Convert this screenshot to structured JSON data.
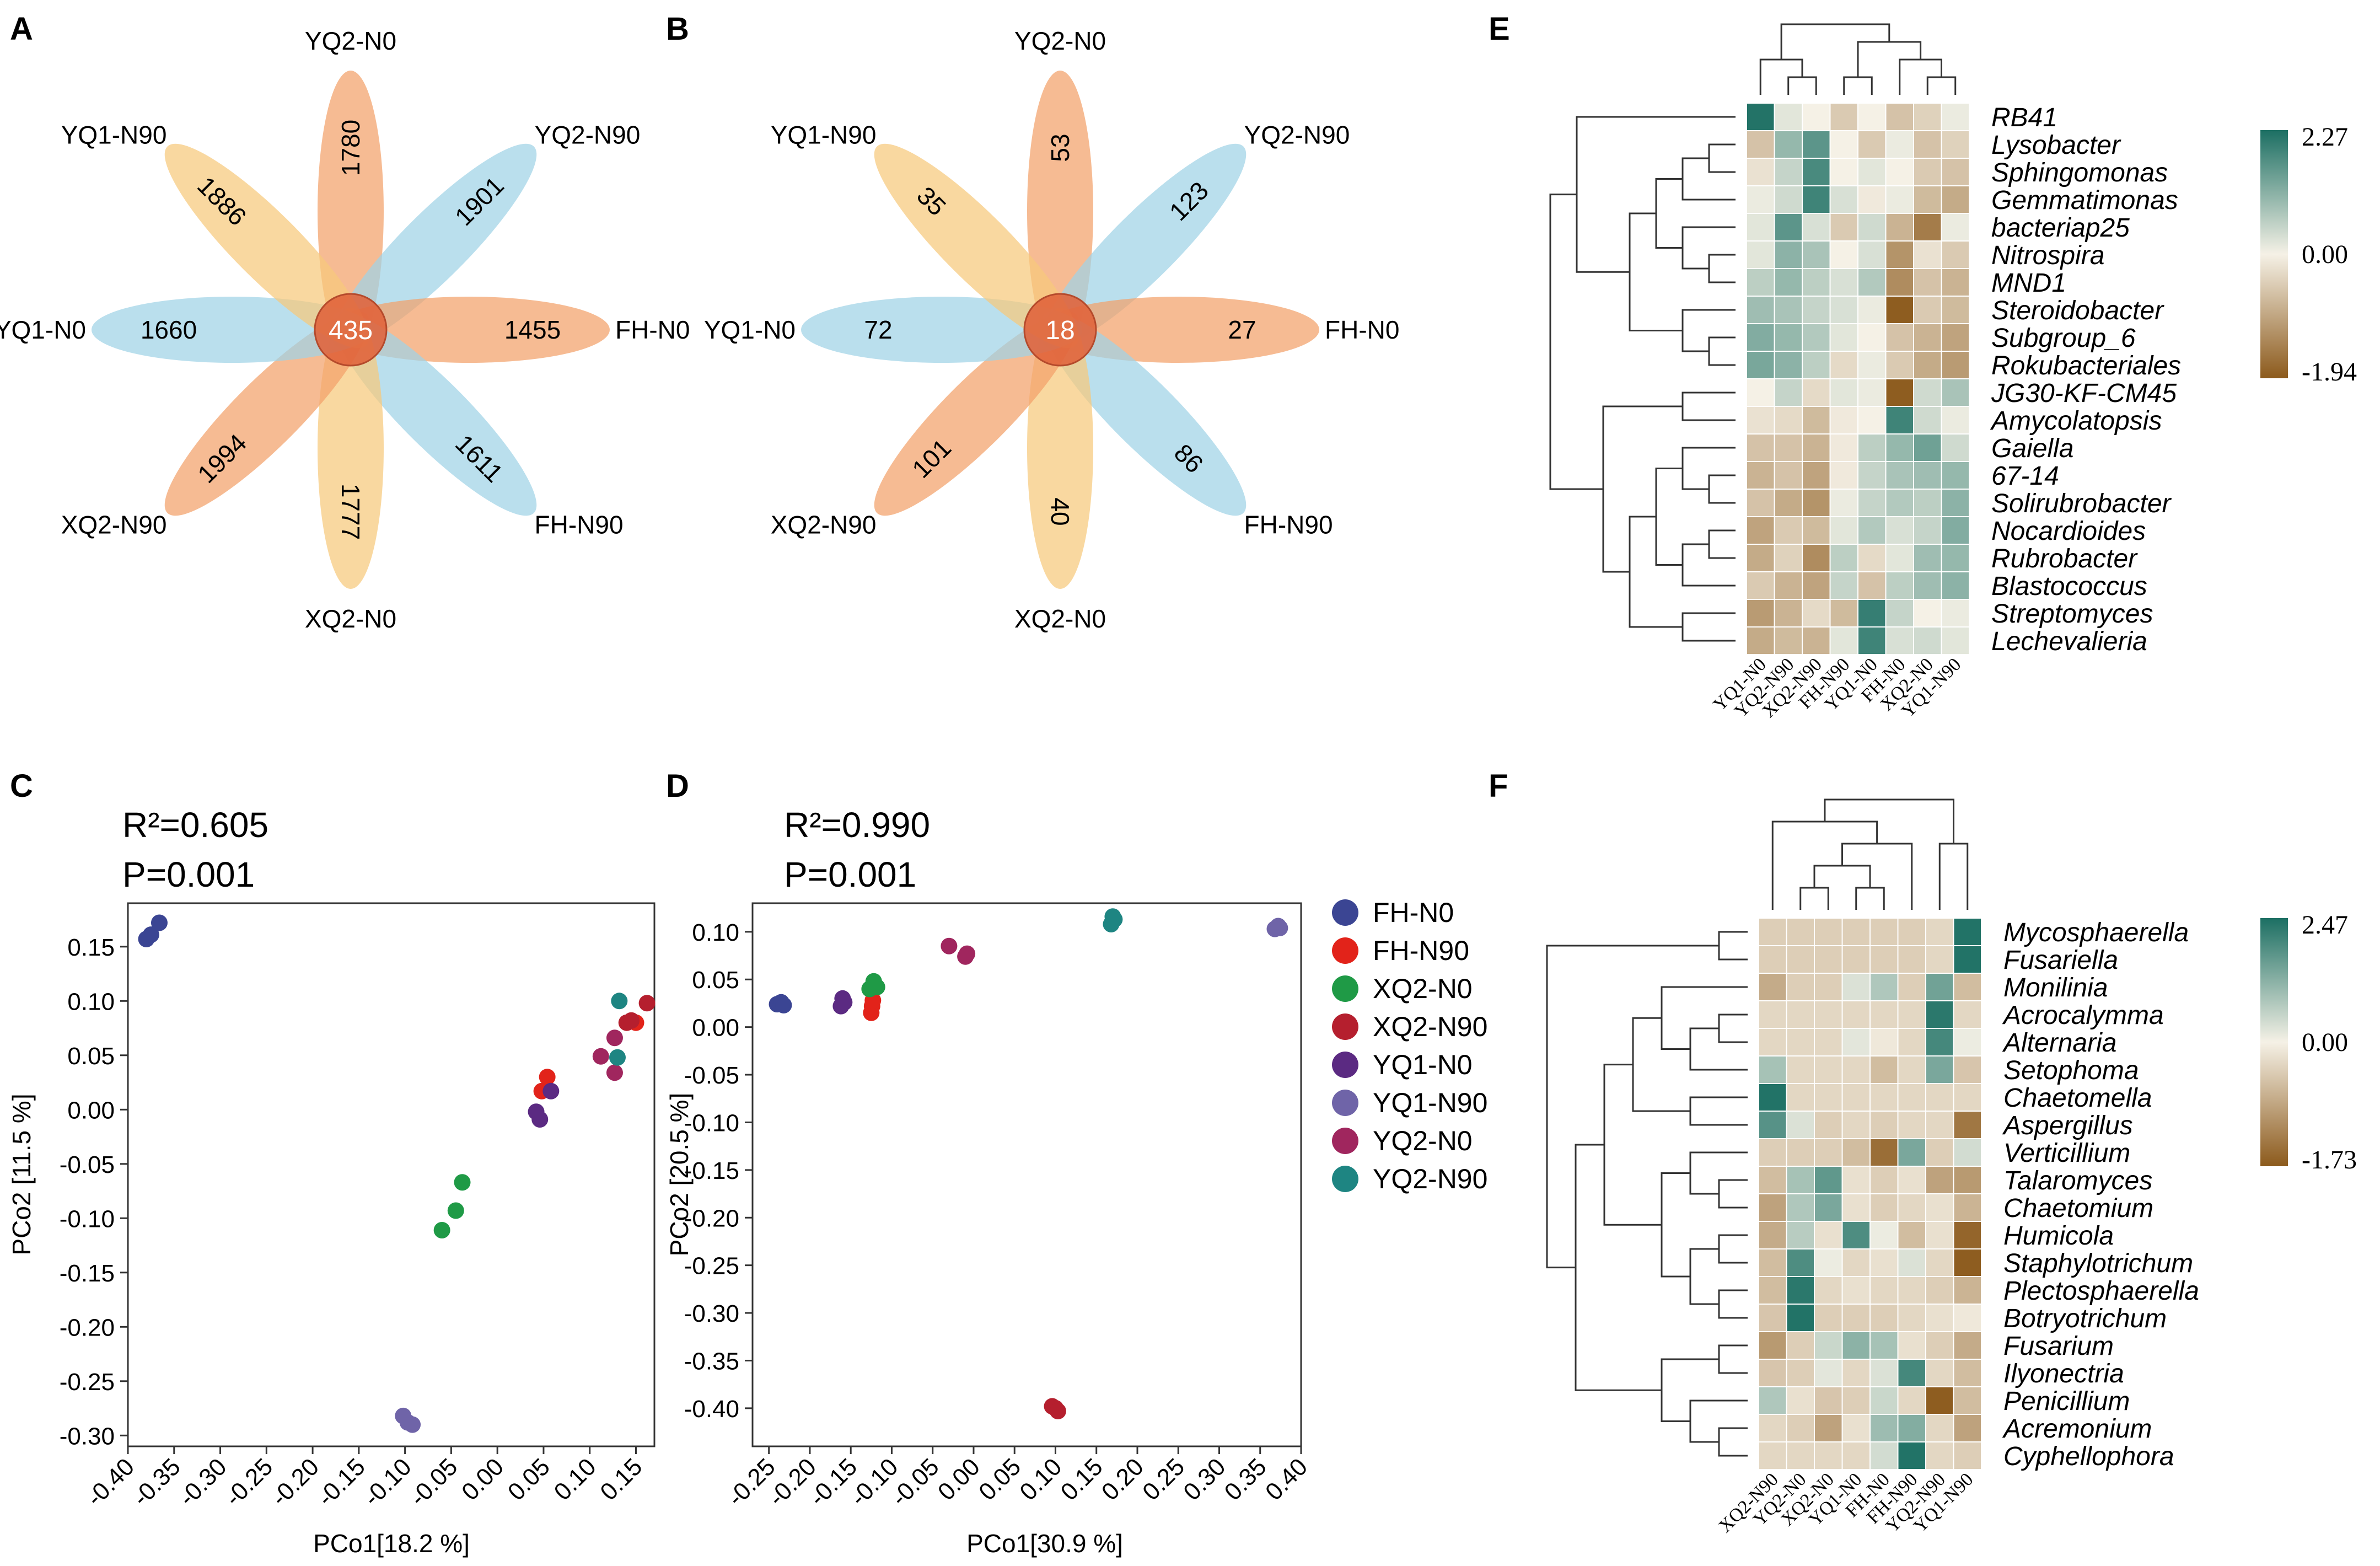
{
  "figure": {
    "panels": [
      "A",
      "B",
      "C",
      "D",
      "E",
      "F"
    ]
  },
  "colors": {
    "orange_petal": "#f2a16a",
    "yellow_petal": "#f7c97c",
    "blue_petal": "#9fd3e6",
    "center": "#e0623a",
    "heat_high": "#1c6f63",
    "heat_mid": "#f5f1e6",
    "heat_low": "#8c5a1c"
  },
  "chart_data": [
    {
      "panel": "A",
      "type": "venn-flower",
      "center_value": "435",
      "petals": [
        {
          "name": "YQ2-N0",
          "value": "1780",
          "color": "orange"
        },
        {
          "name": "YQ2-N90",
          "value": "1901",
          "color": "blue"
        },
        {
          "name": "FH-N0",
          "value": "1455",
          "color": "orange"
        },
        {
          "name": "FH-N90",
          "value": "1611",
          "color": "blue"
        },
        {
          "name": "XQ2-N0",
          "value": "1777",
          "color": "yellow"
        },
        {
          "name": "XQ2-N90",
          "value": "1994",
          "color": "orange"
        },
        {
          "name": "YQ1-N0",
          "value": "1660",
          "color": "blue"
        },
        {
          "name": "YQ1-N90",
          "value": "1886",
          "color": "yellow"
        }
      ]
    },
    {
      "panel": "B",
      "type": "venn-flower",
      "center_value": "18",
      "petals": [
        {
          "name": "YQ2-N0",
          "value": "53",
          "color": "orange"
        },
        {
          "name": "YQ2-N90",
          "value": "123",
          "color": "blue"
        },
        {
          "name": "FH-N0",
          "value": "27",
          "color": "orange"
        },
        {
          "name": "FH-N90",
          "value": "86",
          "color": "blue"
        },
        {
          "name": "XQ2-N0",
          "value": "40",
          "color": "yellow"
        },
        {
          "name": "XQ2-N90",
          "value": "101",
          "color": "orange"
        },
        {
          "name": "YQ1-N0",
          "value": "72",
          "color": "blue"
        },
        {
          "name": "YQ1-N90",
          "value": "35",
          "color": "yellow"
        }
      ]
    },
    {
      "panel": "C",
      "type": "scatter",
      "stat_r2": "R²=0.605",
      "stat_p": "P=0.001",
      "xlabel": "PCo1[18.2 %]",
      "ylabel": "PCo2 [11.5 %]",
      "xlim": [
        -0.4,
        0.17
      ],
      "ylim": [
        -0.31,
        0.19
      ],
      "xticks": [
        "-0.40",
        "-0.35",
        "-0.30",
        "-0.25",
        "-0.20",
        "-0.15",
        "-0.10",
        "-0.05",
        "0.00",
        "0.05",
        "0.10",
        "0.15"
      ],
      "yticks": [
        "0.15",
        "0.10",
        "0.05",
        "0.00",
        "-0.05",
        "-0.10",
        "-0.15",
        "-0.20",
        "-0.25",
        "-0.30"
      ],
      "series": [
        {
          "name": "FH-N0",
          "points": [
            [
              -0.38,
              0.157
            ],
            [
              -0.375,
              0.161
            ],
            [
              -0.366,
              0.172
            ]
          ]
        },
        {
          "name": "FH-N90",
          "points": [
            [
              0.048,
              0.017
            ],
            [
              0.054,
              0.03
            ],
            [
              0.15,
              0.08
            ]
          ]
        },
        {
          "name": "XQ2-N0",
          "points": [
            [
              -0.06,
              -0.111
            ],
            [
              -0.045,
              -0.093
            ],
            [
              -0.038,
              -0.067
            ]
          ]
        },
        {
          "name": "XQ2-N90",
          "points": [
            [
              0.14,
              0.08
            ],
            [
              0.145,
              0.082
            ],
            [
              0.162,
              0.098
            ]
          ]
        },
        {
          "name": "YQ1-N0",
          "points": [
            [
              0.042,
              -0.002
            ],
            [
              0.046,
              -0.009
            ],
            [
              0.058,
              0.017
            ]
          ]
        },
        {
          "name": "YQ1-N90",
          "points": [
            [
              -0.102,
              -0.282
            ],
            [
              -0.097,
              -0.288
            ],
            [
              -0.092,
              -0.29
            ]
          ]
        },
        {
          "name": "YQ2-N0",
          "points": [
            [
              0.112,
              0.049
            ],
            [
              0.127,
              0.066
            ],
            [
              0.127,
              0.034
            ]
          ]
        },
        {
          "name": "YQ2-N90",
          "points": [
            [
              0.132,
              0.1
            ],
            [
              0.13,
              0.048
            ]
          ]
        }
      ]
    },
    {
      "panel": "D",
      "type": "scatter",
      "stat_r2": "R²=0.990",
      "stat_p": "P=0.001",
      "xlabel": "PCo1[30.9 %]",
      "ylabel": "PCo2 [20.5 %]",
      "xlim": [
        -0.27,
        0.4
      ],
      "ylim": [
        -0.44,
        0.13
      ],
      "xticks": [
        "-0.25",
        "-0.20",
        "-0.15",
        "-0.10",
        "-0.05",
        "0.00",
        "0.05",
        "0.10",
        "0.15",
        "0.20",
        "0.25",
        "0.30",
        "0.35",
        "0.40"
      ],
      "yticks": [
        "0.10",
        "0.05",
        "0.00",
        "-0.05",
        "-0.10",
        "-0.15",
        "-0.20",
        "-0.25",
        "-0.30",
        "-0.35",
        "-0.40"
      ],
      "series": [
        {
          "name": "FH-N0",
          "points": [
            [
              -0.24,
              0.024
            ],
            [
              -0.235,
              0.026
            ],
            [
              -0.232,
              0.023
            ]
          ]
        },
        {
          "name": "FH-N90",
          "points": [
            [
              -0.125,
              0.015
            ],
            [
              -0.124,
              0.022
            ],
            [
              -0.123,
              0.028
            ]
          ]
        },
        {
          "name": "XQ2-N0",
          "points": [
            [
              -0.127,
              0.04
            ],
            [
              -0.122,
              0.048
            ],
            [
              -0.118,
              0.042
            ]
          ]
        },
        {
          "name": "XQ2-N90",
          "points": [
            [
              0.096,
              -0.398
            ],
            [
              0.1,
              -0.4
            ],
            [
              0.103,
              -0.403
            ]
          ]
        },
        {
          "name": "YQ1-N0",
          "points": [
            [
              -0.162,
              0.022
            ],
            [
              -0.16,
              0.03
            ],
            [
              -0.158,
              0.026
            ]
          ]
        },
        {
          "name": "YQ1-N90",
          "points": [
            [
              0.368,
              0.103
            ],
            [
              0.372,
              0.106
            ],
            [
              0.374,
              0.104
            ]
          ]
        },
        {
          "name": "YQ2-N0",
          "points": [
            [
              -0.03,
              0.085
            ],
            [
              -0.01,
              0.074
            ],
            [
              -0.008,
              0.077
            ]
          ]
        },
        {
          "name": "YQ2-N90",
          "points": [
            [
              0.168,
              0.108
            ],
            [
              0.17,
              0.116
            ],
            [
              0.172,
              0.113
            ]
          ]
        }
      ]
    },
    {
      "panel": "E",
      "type": "heatmap",
      "columns": [
        "YQ1-N0",
        "YQ2-N90",
        "XQ2-N90",
        "FH-N90",
        "YQ1-N0",
        "FH-N0",
        "XQ2-N0",
        "YQ1-N90"
      ],
      "rows": [
        "RB41",
        "Lysobacter",
        "Sphingomonas",
        "Gemmatimonas",
        "bacteriap25",
        "Nitrospira",
        "MND1",
        "Steroidobacter",
        "Subgroup_6",
        "Rokubacteriales",
        "JG30-KF-CM45",
        "Amycolatopsis",
        "Gaiella",
        "67-14",
        "Solirubrobacter",
        "Nocardioides",
        "Rubrobacter",
        "Blastococcus",
        "Streptomyces",
        "Lechevalieria"
      ],
      "scale_max": "2.27",
      "scale_mid": "0.00",
      "scale_min": "-1.94",
      "vmax": 2.27,
      "vmin": -1.94,
      "values": [
        [
          2.2,
          0.2,
          0.0,
          -0.5,
          0.0,
          -0.6,
          -0.4,
          0.1
        ],
        [
          -0.6,
          1.0,
          1.6,
          0.0,
          -0.5,
          0.1,
          -0.6,
          -0.4
        ],
        [
          -0.2,
          0.5,
          1.8,
          0.0,
          0.2,
          0.0,
          -0.5,
          -0.6
        ],
        [
          0.1,
          0.4,
          1.9,
          0.3,
          -0.1,
          0.1,
          -0.7,
          -0.9
        ],
        [
          0.2,
          1.6,
          0.3,
          -0.5,
          0.4,
          -0.8,
          -1.5,
          0.1
        ],
        [
          0.2,
          1.1,
          0.8,
          0.0,
          0.3,
          -1.2,
          -0.2,
          -0.5
        ],
        [
          0.6,
          1.0,
          0.6,
          0.3,
          0.7,
          -1.3,
          -0.6,
          -0.8
        ],
        [
          0.9,
          0.8,
          0.5,
          0.3,
          0.1,
          -1.9,
          -0.5,
          -0.7
        ],
        [
          1.2,
          1.0,
          0.7,
          0.2,
          0.0,
          -0.6,
          -0.8,
          -1.0
        ],
        [
          1.3,
          1.1,
          0.6,
          -0.3,
          0.1,
          -0.5,
          -0.9,
          -1.1
        ],
        [
          0.0,
          0.5,
          -0.3,
          0.2,
          0.1,
          -1.9,
          0.4,
          0.8
        ],
        [
          -0.2,
          -0.3,
          -0.7,
          -0.1,
          0.0,
          1.9,
          0.4,
          0.1
        ],
        [
          -0.6,
          -0.6,
          -0.8,
          -0.1,
          0.6,
          1.0,
          1.4,
          0.4
        ],
        [
          -0.8,
          -0.6,
          -1.0,
          -0.1,
          0.5,
          0.8,
          0.9,
          1.0
        ],
        [
          -0.6,
          -0.9,
          -1.2,
          0.1,
          0.5,
          0.7,
          0.6,
          1.1
        ],
        [
          -1.0,
          -0.5,
          -0.7,
          0.2,
          0.7,
          0.3,
          0.5,
          1.2
        ],
        [
          -0.9,
          -0.4,
          -1.3,
          0.6,
          -0.3,
          0.2,
          0.9,
          1.0
        ],
        [
          -0.5,
          -0.8,
          -1.0,
          0.5,
          -0.6,
          0.6,
          0.9,
          1.1
        ],
        [
          -1.1,
          -0.8,
          -0.3,
          -0.7,
          2.0,
          0.5,
          0.0,
          0.1
        ],
        [
          -0.9,
          -0.7,
          -0.8,
          0.2,
          1.9,
          0.3,
          0.4,
          0.2
        ]
      ]
    },
    {
      "panel": "F",
      "type": "heatmap",
      "columns": [
        "XQ2-N90",
        "YQ2-N0",
        "XQ2-N0",
        "YQ1-N0",
        "FH-N0",
        "FH-N90",
        "YQ2-N90",
        "YQ1-N90"
      ],
      "rows": [
        "Mycosphaerella",
        "Fusariella",
        "Monilinia",
        "Acrocalymma",
        "Alternaria",
        "Setophoma",
        "Chaetomella",
        "Aspergillus",
        "Verticillium",
        "Talaromyces",
        "Chaetomium",
        "Humicola",
        "Staphylotrichum",
        "Plectosphaerella",
        "Botryotrichum",
        "Fusarium",
        "Ilyonectria",
        "Penicillium",
        "Acremonium",
        "Cyphellophora"
      ],
      "scale_max": "2.47",
      "scale_mid": "0.00",
      "scale_min": "-1.73",
      "vmax": 2.47,
      "vmin": -1.73,
      "values": [
        [
          -0.4,
          -0.4,
          -0.4,
          -0.4,
          -0.4,
          -0.4,
          -0.3,
          2.4
        ],
        [
          -0.4,
          -0.4,
          -0.4,
          -0.4,
          -0.4,
          -0.4,
          -0.3,
          2.4
        ],
        [
          -0.8,
          -0.4,
          -0.4,
          0.3,
          0.8,
          -0.4,
          1.5,
          -0.6
        ],
        [
          -0.3,
          -0.3,
          -0.3,
          -0.3,
          -0.3,
          -0.3,
          2.3,
          -0.3
        ],
        [
          -0.3,
          -0.3,
          -0.3,
          0.2,
          -0.1,
          -0.3,
          2.0,
          0.1
        ],
        [
          0.9,
          -0.3,
          -0.3,
          -0.3,
          -0.6,
          -0.3,
          1.4,
          -0.5
        ],
        [
          2.4,
          -0.3,
          -0.3,
          -0.3,
          -0.3,
          -0.3,
          -0.3,
          -0.3
        ],
        [
          1.8,
          0.3,
          -0.4,
          -0.3,
          -0.4,
          -0.3,
          -0.3,
          -1.4
        ],
        [
          -0.4,
          -0.4,
          -0.4,
          -0.6,
          -1.5,
          1.4,
          -0.4,
          0.4
        ],
        [
          -0.6,
          0.9,
          1.7,
          -0.2,
          -0.4,
          -0.2,
          -0.9,
          -1.0
        ],
        [
          -0.9,
          0.8,
          1.4,
          -0.2,
          -0.4,
          -0.3,
          -0.2,
          -0.7
        ],
        [
          -0.8,
          0.7,
          -0.2,
          1.9,
          0.1,
          -0.6,
          -0.2,
          -1.6
        ],
        [
          -0.6,
          1.9,
          0.1,
          -0.3,
          -0.2,
          0.3,
          -0.3,
          -1.7
        ],
        [
          -0.6,
          2.3,
          -0.3,
          -0.2,
          -0.3,
          -0.3,
          -0.4,
          -0.7
        ],
        [
          -0.5,
          2.4,
          -0.4,
          -0.4,
          -0.4,
          -0.3,
          -0.2,
          -0.1
        ],
        [
          -1.0,
          -0.4,
          0.5,
          1.2,
          0.9,
          -0.2,
          -0.4,
          -0.8
        ],
        [
          -0.5,
          -0.4,
          0.2,
          -0.3,
          0.3,
          2.0,
          -0.3,
          -0.6
        ],
        [
          0.8,
          -0.2,
          -0.5,
          -0.4,
          0.5,
          -0.3,
          -1.7,
          -0.6
        ],
        [
          -0.3,
          -0.4,
          -0.9,
          -0.2,
          1.0,
          1.3,
          -0.3,
          -0.9
        ],
        [
          -0.3,
          -0.3,
          -0.3,
          -0.3,
          0.4,
          2.4,
          -0.3,
          -0.4
        ]
      ]
    }
  ],
  "legend": {
    "items": [
      {
        "name": "FH-N0",
        "color": "#3b4593"
      },
      {
        "name": "FH-N90",
        "color": "#e2231a"
      },
      {
        "name": "XQ2-N0",
        "color": "#1f9a46"
      },
      {
        "name": "XQ2-N90",
        "color": "#b51f2e"
      },
      {
        "name": "YQ1-N0",
        "color": "#5b2a82"
      },
      {
        "name": "YQ1-N90",
        "color": "#6f64a8"
      },
      {
        "name": "YQ2-N0",
        "color": "#a0265e"
      },
      {
        "name": "YQ2-N90",
        "color": "#1e8582"
      }
    ]
  }
}
